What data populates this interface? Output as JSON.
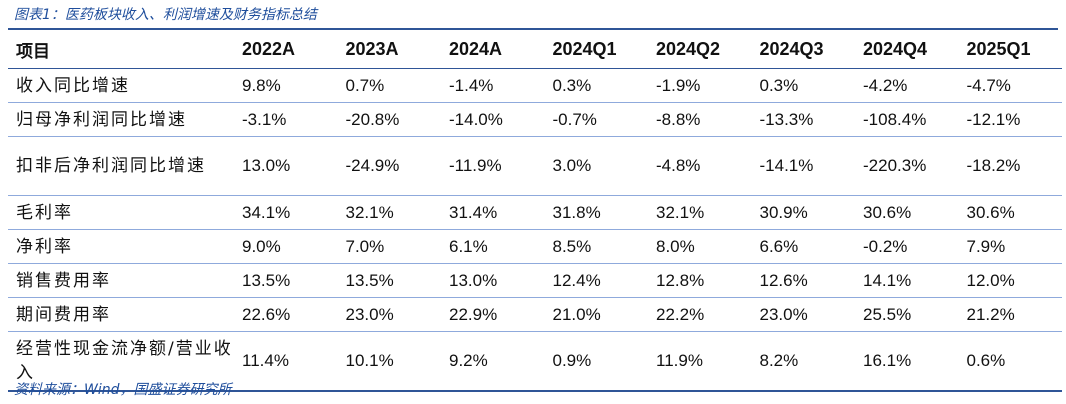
{
  "caption": "图表1：医药板块收入、利润增速及财务指标总结",
  "source": "资料来源：Wind，国盛证券研究所",
  "table": {
    "headers": [
      "项目",
      "2022A",
      "2023A",
      "2024A",
      "2024Q1",
      "2024Q2",
      "2024Q3",
      "2024Q4",
      "2025Q1"
    ],
    "rows": [
      {
        "label": "收入同比增速",
        "values": [
          "9.8%",
          "0.7%",
          "-1.4%",
          "0.3%",
          "-1.9%",
          "0.3%",
          "-4.2%",
          "-4.7%"
        ]
      },
      {
        "label": "归母净利润同比增速",
        "values": [
          "-3.1%",
          "-20.8%",
          "-14.0%",
          "-0.7%",
          "-8.8%",
          "-13.3%",
          "-108.4%",
          "-12.1%"
        ]
      },
      {
        "label": "扣非后净利润同比增速",
        "values": [
          "13.0%",
          "-24.9%",
          "-11.9%",
          "3.0%",
          "-4.8%",
          "-14.1%",
          "-220.3%",
          "-18.2%"
        ]
      },
      {
        "label": "毛利率",
        "values": [
          "34.1%",
          "32.1%",
          "31.4%",
          "31.8%",
          "32.1%",
          "30.9%",
          "30.6%",
          "30.6%"
        ]
      },
      {
        "label": "净利率",
        "values": [
          "9.0%",
          "7.0%",
          "6.1%",
          "8.5%",
          "8.0%",
          "6.6%",
          "-0.2%",
          "7.9%"
        ]
      },
      {
        "label": "销售费用率",
        "values": [
          "13.5%",
          "13.5%",
          "13.0%",
          "12.4%",
          "12.8%",
          "12.6%",
          "14.1%",
          "12.0%"
        ]
      },
      {
        "label": "期间费用率",
        "values": [
          "22.6%",
          "23.0%",
          "22.9%",
          "21.0%",
          "22.2%",
          "23.0%",
          "25.5%",
          "21.2%"
        ]
      },
      {
        "label": "经营性现金流净额/营业收入",
        "values": [
          "11.4%",
          "10.1%",
          "9.2%",
          "0.9%",
          "11.9%",
          "8.2%",
          "16.1%",
          "0.6%"
        ]
      }
    ]
  }
}
